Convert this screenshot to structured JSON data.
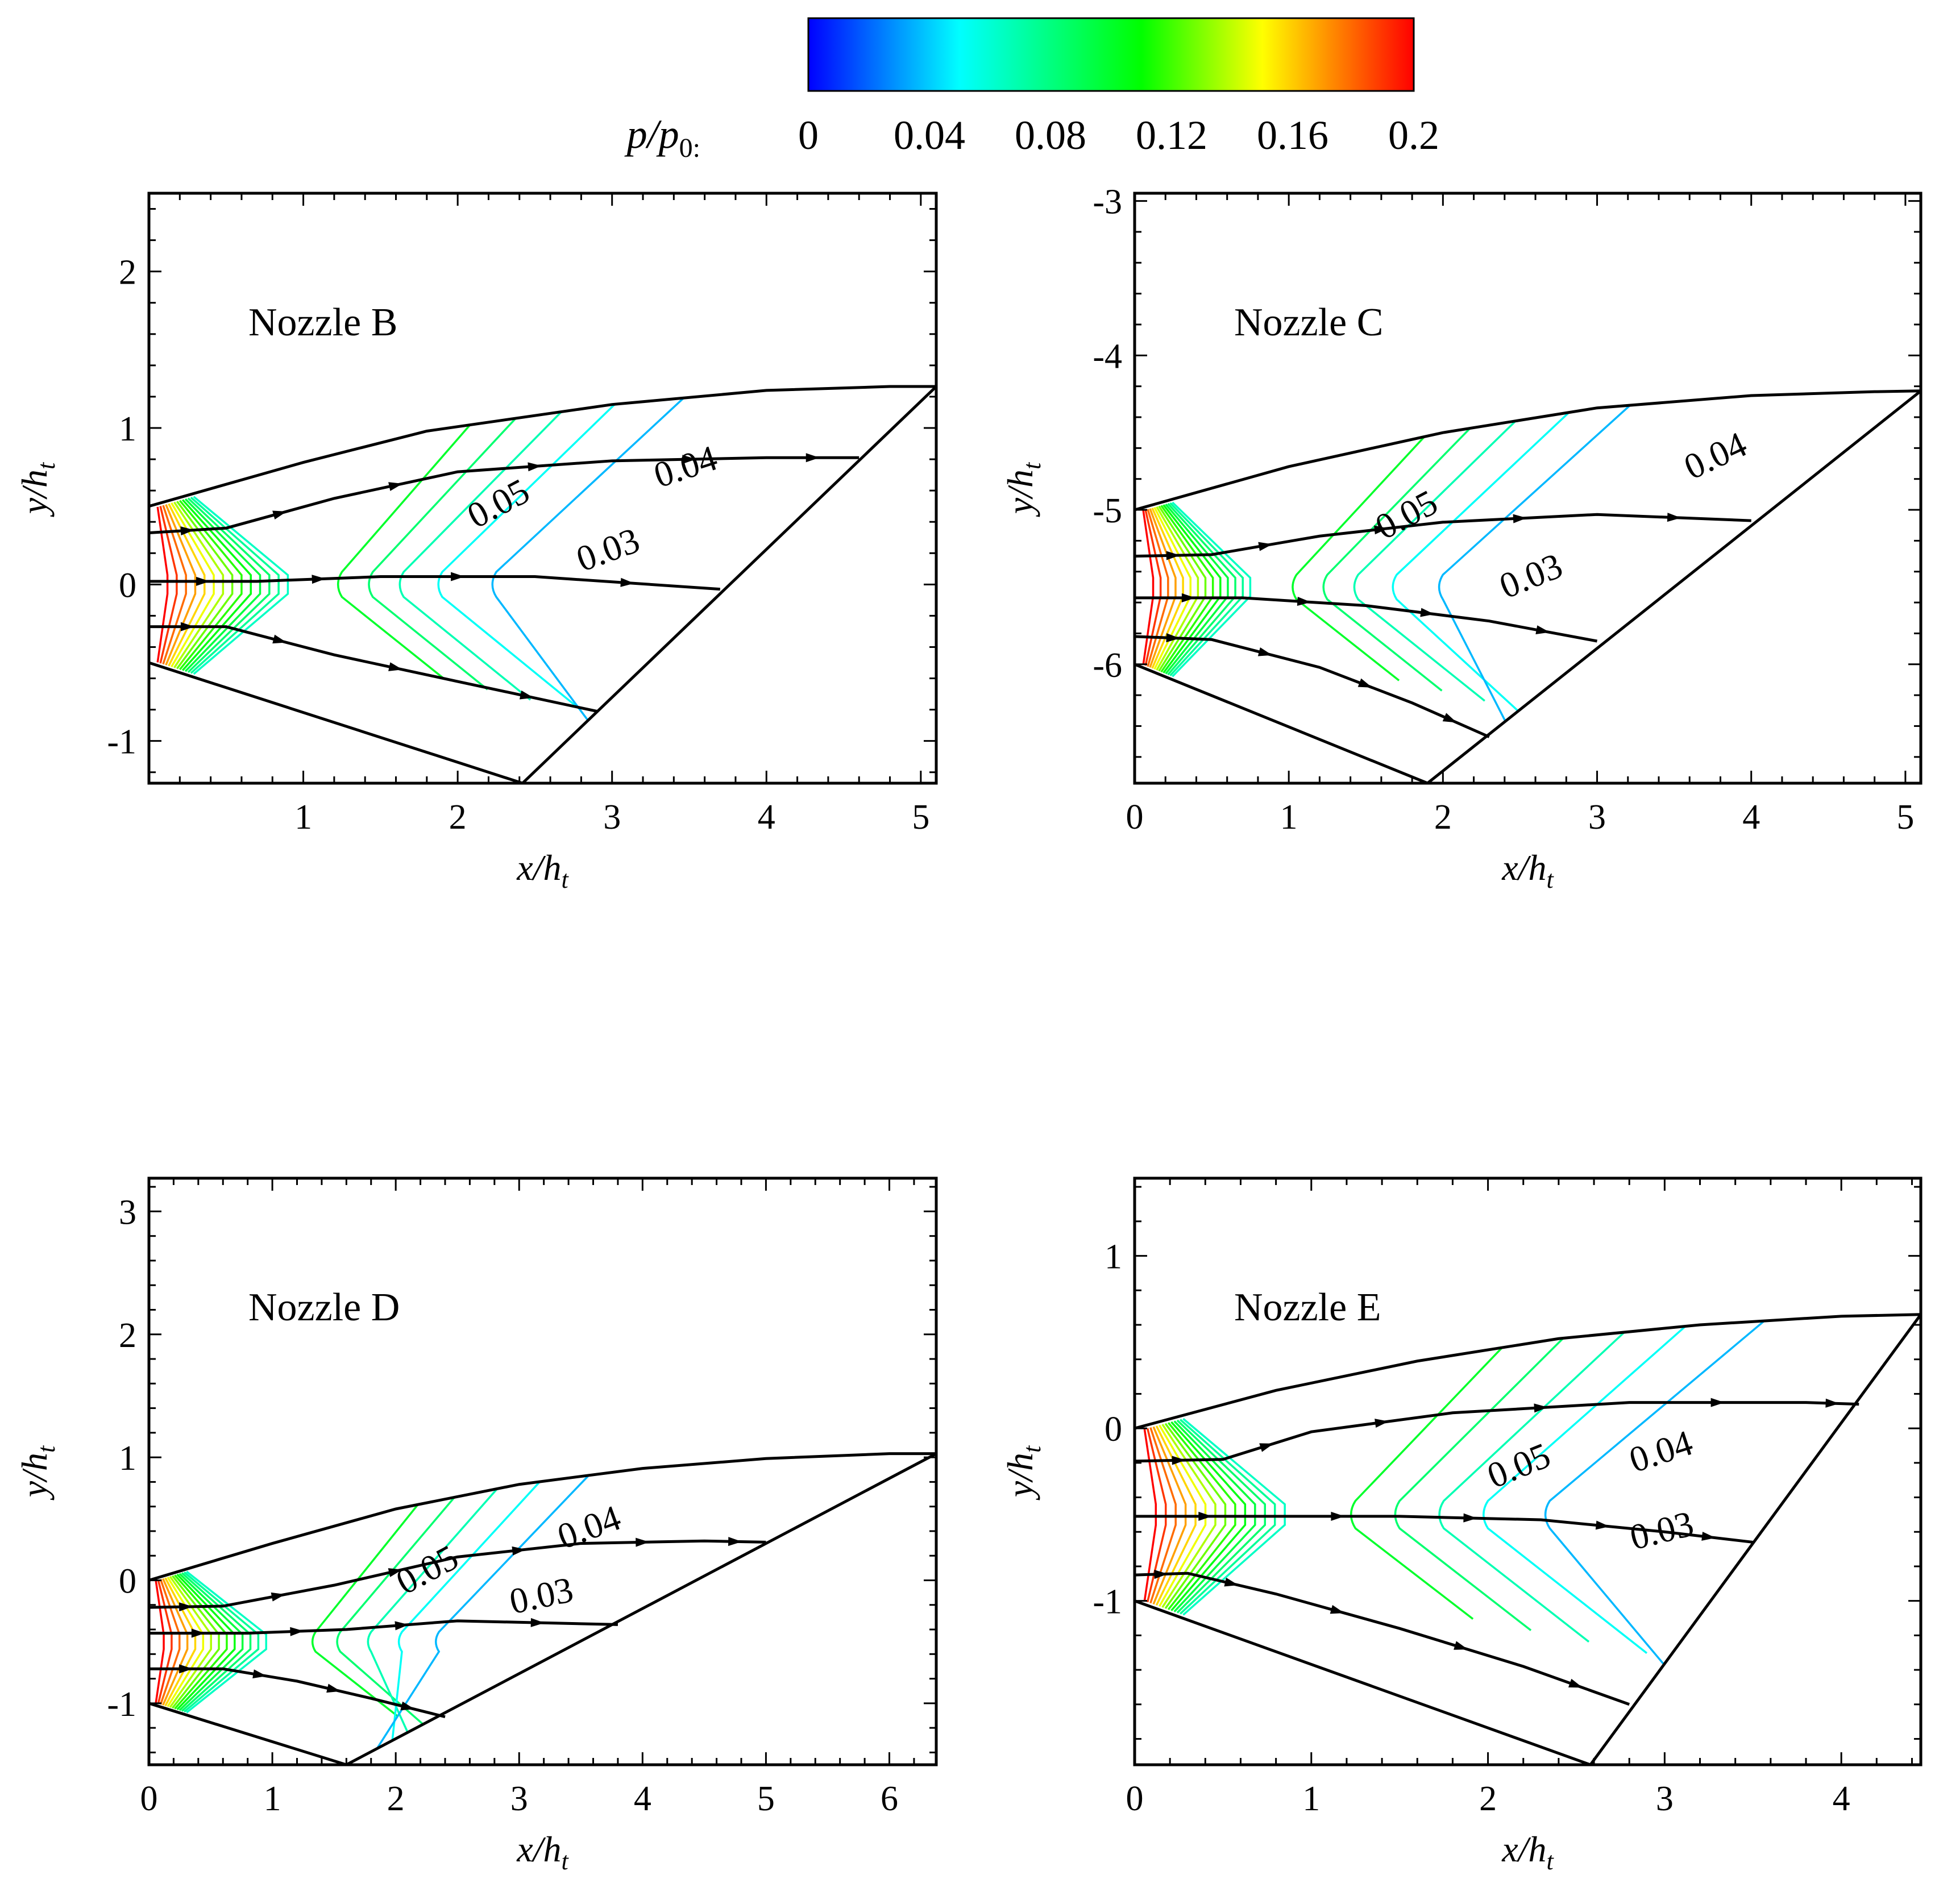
{
  "colorbar": {
    "label_main": "p/p",
    "label_sub": "0:",
    "min": 0,
    "max": 0.2,
    "tick_values": [
      0,
      0.04,
      0.08,
      0.12,
      0.16,
      0.2
    ],
    "tick_labels": [
      "0",
      "0.04",
      "0.08",
      "0.12",
      "0.16",
      "0.2"
    ],
    "colors": [
      "#0000ff",
      "#00ffff",
      "#00ff00",
      "#ffff00",
      "#ff0000"
    ]
  },
  "chart_data": [
    {
      "type": "contour",
      "title": "Nozzle B",
      "xlabel_main": "x/h",
      "xlabel_sub": "t",
      "ylabel_main": "y/h",
      "ylabel_sub": "t",
      "xlim": [
        0,
        5.1
      ],
      "ylim": [
        -1.27,
        2.5
      ],
      "xticks": [
        1,
        2,
        3,
        4,
        5
      ],
      "xtick_labels": [
        "1",
        "2",
        "3",
        "4",
        "5"
      ],
      "yticks": [
        -1,
        0,
        1,
        2
      ],
      "ytick_labels": [
        "-1",
        "0",
        "1",
        "2"
      ],
      "upper_wall": {
        "x": [
          0,
          1.0,
          1.8,
          3.0,
          4.0,
          4.8,
          5.1
        ],
        "y": [
          0.5,
          0.78,
          0.98,
          1.15,
          1.24,
          1.265,
          1.265
        ]
      },
      "lower_wall": {
        "x": [
          0,
          2.42
        ],
        "y": [
          -0.5,
          -1.27
        ]
      },
      "exit_line": {
        "x": [
          2.42,
          5.1
        ],
        "y": [
          -1.27,
          1.265
        ]
      },
      "streamlines": [
        {
          "x": [
            0,
            0.5,
            1.2,
            2.0,
            3.0,
            4.0,
            4.6
          ],
          "y": [
            0.33,
            0.36,
            0.55,
            0.72,
            0.79,
            0.81,
            0.81
          ]
        },
        {
          "x": [
            0,
            0.7,
            1.5,
            2.5,
            3.7
          ],
          "y": [
            0.02,
            0.02,
            0.05,
            0.05,
            -0.03
          ]
        },
        {
          "x": [
            0,
            0.5,
            1.2,
            2.0,
            2.9
          ],
          "y": [
            -0.27,
            -0.27,
            -0.45,
            -0.62,
            -0.81
          ]
        }
      ],
      "contour_labels": [
        {
          "text": "0.05",
          "x": 2.3,
          "y": 0.45,
          "angle": -28
        },
        {
          "text": "0.04",
          "x": 3.5,
          "y": 0.68,
          "angle": -18
        },
        {
          "text": "0.03",
          "x": 3.0,
          "y": 0.15,
          "angle": -20
        }
      ],
      "nozzle_lip": 0.5,
      "contour_fan": [
        1.8,
        2.2,
        2.6
      ],
      "contour_tip_x": 0.9,
      "contour_dx": 0.12,
      "contour_count": 14,
      "contour_tip_x_far": [
        1.2,
        1.4,
        1.6,
        1.85,
        2.2
      ]
    },
    {
      "type": "contour",
      "title": "Nozzle C",
      "xlabel_main": "x/h",
      "xlabel_sub": "t",
      "ylabel_main": "y/h",
      "ylabel_sub": "t",
      "xlim": [
        0,
        5.1
      ],
      "ylim": [
        -6.77,
        -2.95
      ],
      "xticks": [
        0,
        1,
        2,
        3,
        4,
        5
      ],
      "xtick_labels": [
        "0",
        "1",
        "2",
        "3",
        "4",
        "5"
      ],
      "yticks": [
        -6,
        -5,
        -4,
        -3
      ],
      "ytick_labels": [
        "-6",
        "-5",
        "-4",
        "-3"
      ],
      "upper_wall": {
        "x": [
          0,
          1.0,
          2.0,
          3.0,
          4.0,
          4.8,
          5.1
        ],
        "y": [
          -5.0,
          -4.72,
          -4.5,
          -4.34,
          -4.26,
          -4.235,
          -4.23
        ]
      },
      "lower_wall": {
        "x": [
          0,
          1.9
        ],
        "y": [
          -6.0,
          -6.77
        ]
      },
      "exit_line": {
        "x": [
          1.9,
          5.1
        ],
        "y": [
          -6.77,
          -4.23
        ]
      },
      "streamlines": [
        {
          "x": [
            0,
            0.5,
            1.2,
            2.0,
            3.0,
            4.0
          ],
          "y": [
            -5.3,
            -5.29,
            -5.17,
            -5.08,
            -5.03,
            -5.07
          ]
        },
        {
          "x": [
            0,
            0.7,
            1.5,
            2.3,
            3.0
          ],
          "y": [
            -5.57,
            -5.57,
            -5.62,
            -5.72,
            -5.85
          ]
        },
        {
          "x": [
            0,
            0.5,
            1.2,
            1.8,
            2.3
          ],
          "y": [
            -5.82,
            -5.84,
            -6.02,
            -6.25,
            -6.47
          ]
        }
      ],
      "contour_labels": [
        {
          "text": "0.05",
          "x": 1.8,
          "y": -5.1,
          "angle": -28
        },
        {
          "text": "0.04",
          "x": 3.8,
          "y": -4.72,
          "angle": -25
        },
        {
          "text": "0.03",
          "x": 2.6,
          "y": -5.5,
          "angle": -22
        }
      ],
      "nozzle_lip": 0.5,
      "contour_tip_x": 0.75,
      "contour_dx": 0.1,
      "contour_count": 14,
      "contour_tip_x_far": [
        1.0,
        1.2,
        1.4,
        1.65,
        1.95
      ]
    },
    {
      "type": "contour",
      "title": "Nozzle D",
      "xlabel_main": "x/h",
      "xlabel_sub": "t",
      "ylabel_main": "y/h",
      "ylabel_sub": "t",
      "xlim": [
        0,
        6.38
      ],
      "ylim": [
        -1.5,
        3.27
      ],
      "xticks": [
        0,
        1,
        2,
        3,
        4,
        5,
        6
      ],
      "xtick_labels": [
        "0",
        "1",
        "2",
        "3",
        "4",
        "5",
        "6"
      ],
      "yticks": [
        -1,
        0,
        1,
        2,
        3
      ],
      "ytick_labels": [
        "-1",
        "0",
        "1",
        "2",
        "3"
      ],
      "upper_wall": {
        "x": [
          0,
          1.0,
          2.0,
          3.0,
          4.0,
          5.0,
          6.0,
          6.38
        ],
        "y": [
          0.0,
          0.3,
          0.58,
          0.78,
          0.91,
          0.99,
          1.03,
          1.03
        ]
      },
      "lower_wall": {
        "x": [
          0,
          1.6
        ],
        "y": [
          -1.0,
          -1.5
        ]
      },
      "exit_line": {
        "x": [
          1.6,
          6.38
        ],
        "y": [
          -1.5,
          1.03
        ]
      },
      "streamlines": [
        {
          "x": [
            0,
            0.6,
            1.5,
            2.5,
            3.5,
            4.5,
            5.0
          ],
          "y": [
            -0.22,
            -0.21,
            -0.04,
            0.19,
            0.3,
            0.32,
            0.31
          ]
        },
        {
          "x": [
            0,
            0.8,
            1.6,
            2.5,
            3.8
          ],
          "y": [
            -0.43,
            -0.43,
            -0.4,
            -0.33,
            -0.36
          ]
        },
        {
          "x": [
            0,
            0.6,
            1.2,
            1.8,
            2.4
          ],
          "y": [
            -0.72,
            -0.72,
            -0.82,
            -0.96,
            -1.11
          ]
        }
      ],
      "contour_labels": [
        {
          "text": "0.05",
          "x": 2.3,
          "y": 0.0,
          "angle": -28
        },
        {
          "text": "0.04",
          "x": 3.6,
          "y": 0.34,
          "angle": -20
        },
        {
          "text": "0.03",
          "x": 3.2,
          "y": -0.22,
          "angle": -12
        }
      ],
      "nozzle_lip": 0.5,
      "contour_tip_x": 0.95,
      "contour_dx": 0.12,
      "contour_count": 14,
      "contour_tip_x_far": [
        1.3,
        1.5,
        1.75,
        2.0,
        2.3
      ]
    },
    {
      "type": "contour",
      "title": "Nozzle E",
      "xlabel_main": "x/h",
      "xlabel_sub": "t",
      "ylabel_main": "y/h",
      "ylabel_sub": "t",
      "xlim": [
        0,
        4.45
      ],
      "ylim": [
        -1.95,
        1.45
      ],
      "xticks": [
        0,
        1,
        2,
        3,
        4
      ],
      "xtick_labels": [
        "0",
        "1",
        "2",
        "3",
        "4"
      ],
      "yticks": [
        -1,
        0,
        1
      ],
      "ytick_labels": [
        "-1",
        "0",
        "1"
      ],
      "upper_wall": {
        "x": [
          0,
          0.8,
          1.6,
          2.4,
          3.2,
          4.0,
          4.45
        ],
        "y": [
          0.0,
          0.22,
          0.39,
          0.52,
          0.6,
          0.65,
          0.66
        ]
      },
      "lower_wall": {
        "x": [
          0,
          2.58
        ],
        "y": [
          -1.0,
          -1.95
        ]
      },
      "exit_line": {
        "x": [
          2.58,
          4.45
        ],
        "y": [
          -1.95,
          0.66
        ]
      },
      "streamlines": [
        {
          "x": [
            0,
            0.5,
            1.0,
            1.8,
            2.8,
            3.8,
            4.1
          ],
          "y": [
            -0.19,
            -0.18,
            -0.02,
            0.09,
            0.15,
            0.15,
            0.14
          ]
        },
        {
          "x": [
            0,
            0.8,
            1.5,
            2.3,
            3.0,
            3.5
          ],
          "y": [
            -0.51,
            -0.51,
            -0.51,
            -0.53,
            -0.6,
            -0.66
          ]
        },
        {
          "x": [
            0,
            0.3,
            0.8,
            1.5,
            2.2,
            2.8
          ],
          "y": [
            -0.85,
            -0.84,
            -0.96,
            -1.16,
            -1.38,
            -1.6
          ]
        }
      ],
      "contour_labels": [
        {
          "text": "0.05",
          "x": 2.2,
          "y": -0.28,
          "angle": -22
        },
        {
          "text": "0.04",
          "x": 3.0,
          "y": -0.2,
          "angle": -18
        },
        {
          "text": "0.03",
          "x": 3.0,
          "y": -0.66,
          "angle": -14
        }
      ],
      "nozzle_lip": 0.5,
      "contour_tip_x": 0.85,
      "contour_dx": 0.1,
      "contour_count": 14,
      "contour_tip_x_far": [
        1.2,
        1.45,
        1.7,
        1.95,
        2.3
      ]
    }
  ]
}
